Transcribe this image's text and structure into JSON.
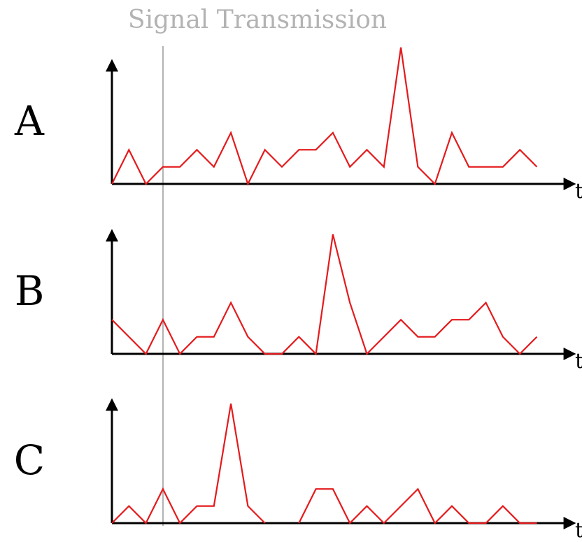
{
  "title": "Signal Transmission",
  "colors": {
    "signal": "#e41a1c",
    "axis": "#000000",
    "marker": "#b3b3b3",
    "title": "#b3b3b3",
    "label": "#000000"
  },
  "axis_time_label": "t",
  "chart_data": {
    "type": "line",
    "title": "Signal Transmission",
    "x": [
      0,
      1,
      2,
      3,
      4,
      5,
      6,
      7,
      8,
      9,
      10,
      11,
      12,
      13,
      14,
      15,
      16,
      17,
      18,
      19,
      20,
      21,
      22,
      23,
      24,
      25
    ],
    "marker_x": 3,
    "series": [
      {
        "name": "A",
        "values": [
          0,
          2,
          0,
          1,
          1,
          2,
          1,
          3,
          0,
          2,
          1,
          2,
          2,
          3,
          1,
          2,
          1,
          8,
          1,
          0,
          3,
          1,
          1,
          1,
          2,
          1
        ]
      },
      {
        "name": "B",
        "values": [
          2,
          1,
          0,
          2,
          0,
          1,
          1,
          3,
          1,
          0,
          0,
          1,
          0,
          7,
          3,
          0,
          1,
          2,
          1,
          1,
          2,
          2,
          3,
          1,
          0,
          1
        ]
      },
      {
        "name": "C",
        "values": [
          0,
          1,
          0,
          2,
          0,
          1,
          1,
          7,
          1,
          0,
          null,
          0,
          2,
          2,
          0,
          1,
          0,
          1,
          2,
          0,
          1,
          0,
          0,
          1,
          0,
          0
        ]
      }
    ]
  }
}
